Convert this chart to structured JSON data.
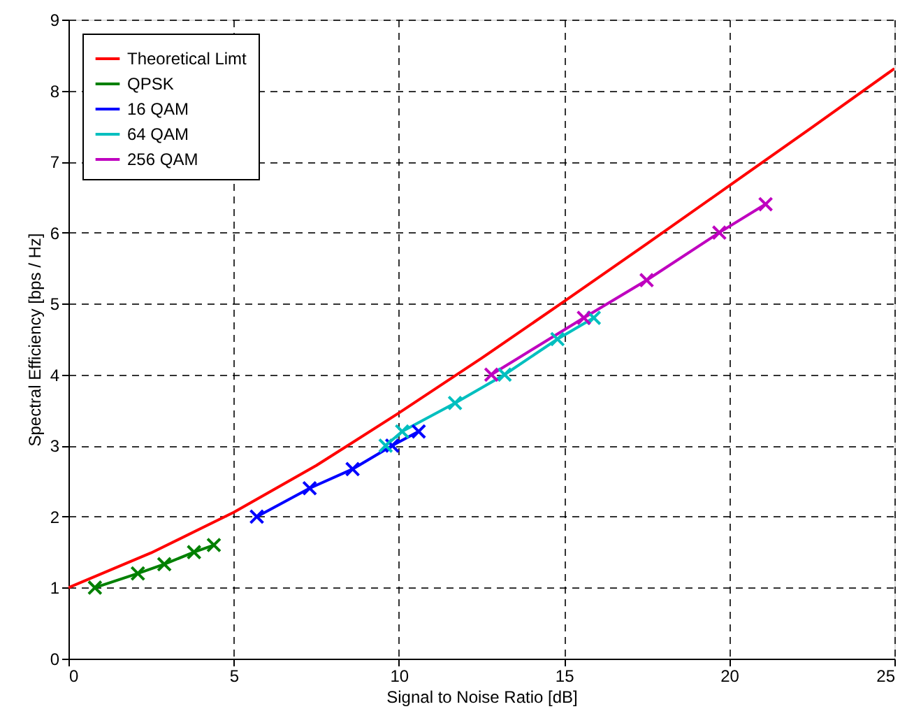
{
  "chart_data": {
    "type": "line",
    "xlabel": "Signal to Noise Ratio [dB]",
    "ylabel": "Spectral Efficiency [bps / Hz]",
    "xlim": [
      0,
      25
    ],
    "ylim": [
      0,
      9
    ],
    "xticks": [
      0,
      5,
      10,
      15,
      20,
      25
    ],
    "yticks": [
      0,
      1,
      2,
      3,
      4,
      5,
      6,
      7,
      8,
      9
    ],
    "grid": true,
    "legend": "top left",
    "line_style": "solid",
    "series": [
      {
        "name": "Theoretical Limt",
        "color": "#ff0000",
        "marker": "none",
        "x": [
          0,
          2.5,
          5,
          7.5,
          10,
          12.5,
          15,
          17.5,
          20,
          22.5,
          25
        ],
        "values": [
          1,
          1.49,
          2.06,
          2.72,
          3.46,
          4.23,
          5.03,
          5.84,
          6.66,
          7.48,
          8.31
        ]
      },
      {
        "name": "QPSK",
        "color": "#008000",
        "marker": "cross",
        "x": [
          0.8,
          2.1,
          2.9,
          3.8,
          4.4
        ],
        "values": [
          1,
          1.2,
          1.33,
          1.5,
          1.6
        ]
      },
      {
        "name": "16 QAM",
        "color": "#0000ff",
        "marker": "cross",
        "x": [
          5.7,
          7.3,
          8.6,
          9.8,
          10.6
        ],
        "values": [
          2.0,
          2.4,
          2.67,
          3.0,
          3.2
        ]
      },
      {
        "name": "64 QAM",
        "color": "#00bfbf",
        "marker": "cross",
        "x": [
          9.6,
          10.1,
          11.7,
          13.2,
          14.8,
          15.9
        ],
        "values": [
          3.0,
          3.2,
          3.6,
          4.0,
          4.5,
          4.8
        ]
      },
      {
        "name": "256 QAM",
        "color": "#bf00bf",
        "marker": "cross",
        "x": [
          12.8,
          15.6,
          17.5,
          19.7,
          21.1
        ],
        "values": [
          4.0,
          4.8,
          5.33,
          6.0,
          6.4
        ]
      }
    ]
  }
}
